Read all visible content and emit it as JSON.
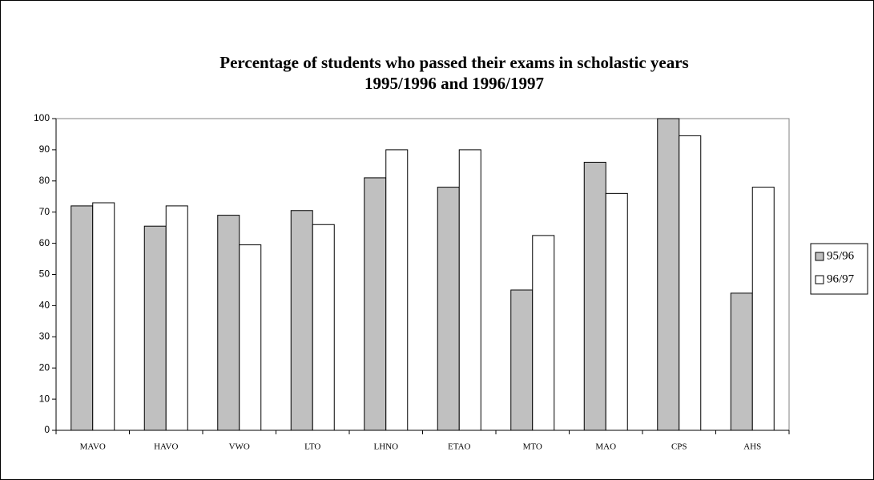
{
  "chart_data": {
    "type": "bar",
    "title": [
      "Percentage of students who passed their exams in scholastic years",
      "1995/1996 and 1996/1997"
    ],
    "categories": [
      "MAVO",
      "HAVO",
      "VWO",
      "LTO",
      "LHNO",
      "ETAO",
      "MTO",
      "MAO",
      "CPS",
      "AHS"
    ],
    "series": [
      {
        "name": "95/96",
        "color": "#c0c0c0",
        "values": [
          72,
          65.5,
          69,
          70.5,
          81,
          78,
          45,
          86,
          100,
          44
        ]
      },
      {
        "name": "96/97",
        "color": "#ffffff",
        "values": [
          73,
          72,
          59.5,
          66,
          90,
          90,
          62.5,
          76,
          94.5,
          78
        ]
      }
    ],
    "ylim": [
      0,
      100
    ],
    "yticks": [
      0,
      10,
      20,
      30,
      40,
      50,
      60,
      70,
      80,
      90,
      100
    ],
    "grid": false,
    "legend": "right"
  }
}
